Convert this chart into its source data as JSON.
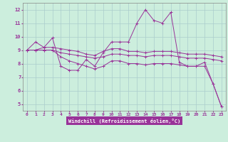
{
  "title": "",
  "xlabel": "Windchill (Refroidissement éolien,°C)",
  "bg_color": "#cceedd",
  "grid_color": "#aacccc",
  "line_color": "#993399",
  "tick_color": "#993399",
  "xlabel_bg": "#993399",
  "xlabel_fg": "#ffffff",
  "x_ticks": [
    0,
    1,
    2,
    3,
    4,
    5,
    6,
    7,
    8,
    9,
    10,
    11,
    12,
    13,
    14,
    15,
    16,
    17,
    18,
    19,
    20,
    21,
    22,
    23
  ],
  "ylim": [
    4.5,
    12.5
  ],
  "xlim": [
    -0.5,
    23.5
  ],
  "series1": [
    9.0,
    9.6,
    9.2,
    9.9,
    7.8,
    7.5,
    7.5,
    8.3,
    7.8,
    8.8,
    9.6,
    9.6,
    9.6,
    11.0,
    12.0,
    11.2,
    11.0,
    11.8,
    8.1,
    7.8,
    7.8,
    8.1,
    6.5,
    4.8
  ],
  "series2": [
    9.0,
    9.0,
    9.2,
    9.2,
    9.1,
    9.0,
    8.9,
    8.7,
    8.6,
    8.9,
    9.1,
    9.1,
    8.9,
    8.9,
    8.8,
    8.9,
    8.9,
    8.9,
    8.8,
    8.7,
    8.7,
    8.7,
    8.6,
    8.5
  ],
  "series3": [
    9.0,
    9.0,
    9.0,
    9.0,
    8.8,
    8.7,
    8.6,
    8.5,
    8.4,
    8.5,
    8.7,
    8.7,
    8.6,
    8.6,
    8.5,
    8.6,
    8.6,
    8.6,
    8.5,
    8.4,
    8.4,
    8.4,
    8.3,
    8.2
  ],
  "series4": [
    9.0,
    9.0,
    9.0,
    9.0,
    8.5,
    8.2,
    8.0,
    7.8,
    7.6,
    7.8,
    8.2,
    8.2,
    8.0,
    8.0,
    7.9,
    8.0,
    8.0,
    8.0,
    7.9,
    7.8,
    7.8,
    7.8,
    6.5,
    4.8
  ]
}
